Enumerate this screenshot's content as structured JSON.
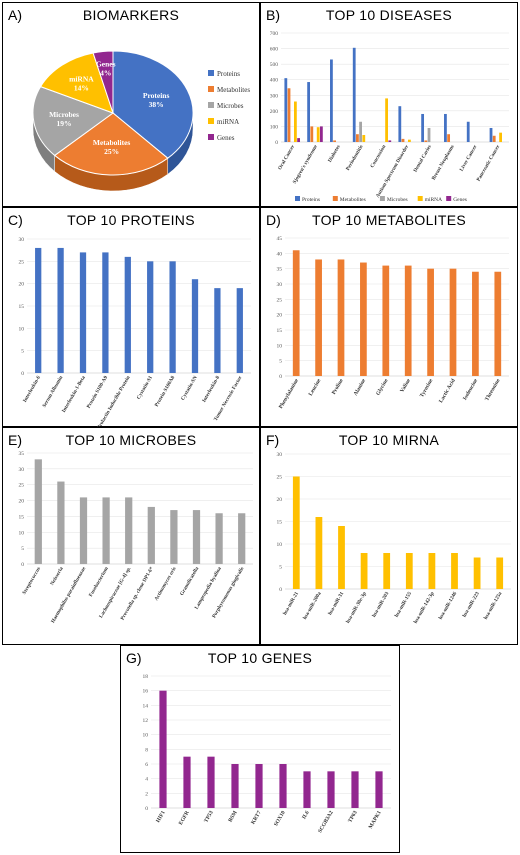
{
  "colors": {
    "proteins": "#4472C4",
    "metabolites": "#ED7D31",
    "microbes": "#A5A5A5",
    "mirna": "#FFC000",
    "genes": "#92278F"
  },
  "panels": {
    "a": {
      "letter": "A)",
      "title": "BIOMARKERS"
    },
    "b": {
      "letter": "B)",
      "title": "TOP 10 DISEASES"
    },
    "c": {
      "letter": "C)",
      "title": "TOP 10 PROTEINS"
    },
    "d": {
      "letter": "D)",
      "title": "TOP 10 METABOLITES"
    },
    "e": {
      "letter": "E)",
      "title": "TOP 10 MICROBES"
    },
    "f": {
      "letter": "F)",
      "title": "TOP 10 MIRNA"
    },
    "g": {
      "letter": "G)",
      "title": "TOP 10 GENES"
    }
  },
  "chart_data": [
    {
      "id": "a",
      "type": "pie",
      "title": "BIOMARKERS",
      "categories": [
        "Proteins",
        "Metabolites",
        "Microbes",
        "miRNA",
        "Genes"
      ],
      "values": [
        38,
        25,
        19,
        14,
        4
      ],
      "slice_labels": [
        "Proteins\n38%",
        "Metabolites\n25%",
        "Microbes\n19%",
        "miRNA\n14%",
        "Genes\n4%"
      ],
      "legend": [
        "Proteins",
        "Metabolites",
        "Microbes",
        "miRNA",
        "Genes"
      ],
      "legend_position": "right"
    },
    {
      "id": "b",
      "type": "bar",
      "title": "TOP 10 DISEASES",
      "categories": [
        "Oral Cancer",
        "Sjogren's syndrome",
        "Diabetes",
        "Periodontitis",
        "Concussion",
        "Autism Spectrum Disorder",
        "Dental Caries",
        "Breast Neoplasms",
        "Liver Cancer",
        "Pancreatic Cancer"
      ],
      "series": [
        {
          "name": "Proteins",
          "values": [
            410,
            385,
            530,
            605,
            0,
            230,
            180,
            180,
            130,
            90
          ]
        },
        {
          "name": "Metabolites",
          "values": [
            345,
            100,
            10,
            50,
            0,
            20,
            10,
            50,
            0,
            40
          ]
        },
        {
          "name": "Microbes",
          "values": [
            0,
            0,
            0,
            130,
            0,
            0,
            90,
            0,
            0,
            0
          ]
        },
        {
          "name": "miRNA",
          "values": [
            260,
            95,
            0,
            45,
            280,
            15,
            0,
            0,
            0,
            60
          ]
        },
        {
          "name": "Genes",
          "values": [
            25,
            100,
            0,
            0,
            10,
            0,
            0,
            0,
            0,
            0
          ]
        }
      ],
      "ylim": [
        0,
        700
      ],
      "yticks": [
        0,
        100,
        200,
        300,
        400,
        500,
        600,
        700
      ],
      "legend_position": "bottom"
    },
    {
      "id": "c",
      "type": "bar",
      "title": "TOP 10 PROTEINS",
      "categories": [
        "Interleukin-6",
        "Serum Albumin",
        "Interleukin-1-Beta",
        "Protein S100-A9",
        "Prolactin Inducible Protein",
        "Cystatin-S1",
        "Protein S100A8",
        "Cystatin-SN",
        "Interleukin-8",
        "Tumor Necrosis Factor"
      ],
      "values": [
        28,
        28,
        27,
        27,
        26,
        25,
        25,
        21,
        19,
        19
      ],
      "ylim": [
        0,
        30
      ],
      "yticks": [
        0,
        5,
        10,
        15,
        20,
        25,
        30
      ]
    },
    {
      "id": "d",
      "type": "bar",
      "title": "TOP 10 METABOLITES",
      "categories": [
        "Phenylalanine",
        "Leucine",
        "Proline",
        "Alanine",
        "Glycine",
        "Valine",
        "Tyrosine",
        "Lactic Acid",
        "Isoleucine",
        "Threonine"
      ],
      "values": [
        41,
        38,
        38,
        37,
        36,
        36,
        35,
        35,
        34,
        34
      ],
      "ylim": [
        0,
        45
      ],
      "yticks": [
        0,
        5,
        10,
        15,
        20,
        25,
        30,
        35,
        40,
        45
      ]
    },
    {
      "id": "e",
      "type": "bar",
      "title": "TOP 10 MICROBES",
      "categories": [
        "Streptococcus",
        "Neisseria",
        "Haemophilus parainfluenzae",
        "Fusobacterium",
        "Lachnospiraceae [G-4] sp.",
        "Prevotella sp. clone DP1-6*",
        "Actinomyces oris",
        "Granulicatella",
        "Lampropedia hyalina",
        "Porphyromonas gingivalis"
      ],
      "values": [
        33,
        26,
        21,
        21,
        21,
        18,
        17,
        17,
        16,
        16
      ],
      "ylim": [
        0,
        35
      ],
      "yticks": [
        0,
        5,
        10,
        15,
        20,
        25,
        30,
        35
      ]
    },
    {
      "id": "f",
      "type": "bar",
      "title": "TOP 10 MIRNA",
      "categories": [
        "hsa-miR-21",
        "hsa-miR-200a",
        "hsa-miR-31",
        "hsa-miR-30e-3p",
        "hsa-miR-203",
        "hsa-miR-155",
        "hsa-miR-142-3p",
        "hsa-miR-1246",
        "hsa-miR-223",
        "hsa-miR-125a"
      ],
      "values": [
        25,
        16,
        14,
        8,
        8,
        8,
        8,
        8,
        7,
        7
      ],
      "ylim": [
        0,
        30
      ],
      "yticks": [
        0,
        5,
        10,
        15,
        20,
        25,
        30
      ]
    },
    {
      "id": "g",
      "type": "bar",
      "title": "TOP 10 GENES",
      "categories": [
        "HIF1",
        "EGFR",
        "TP53",
        "BSM",
        "KRT7",
        "SOX10",
        "IL6",
        "SCGB3A2",
        "TP63",
        "MAPK1"
      ],
      "values": [
        16,
        7,
        7,
        6,
        6,
        6,
        5,
        5,
        5,
        5
      ],
      "ylim": [
        0,
        18
      ],
      "yticks": [
        0,
        2,
        4,
        6,
        8,
        10,
        12,
        14,
        16,
        18
      ]
    }
  ]
}
